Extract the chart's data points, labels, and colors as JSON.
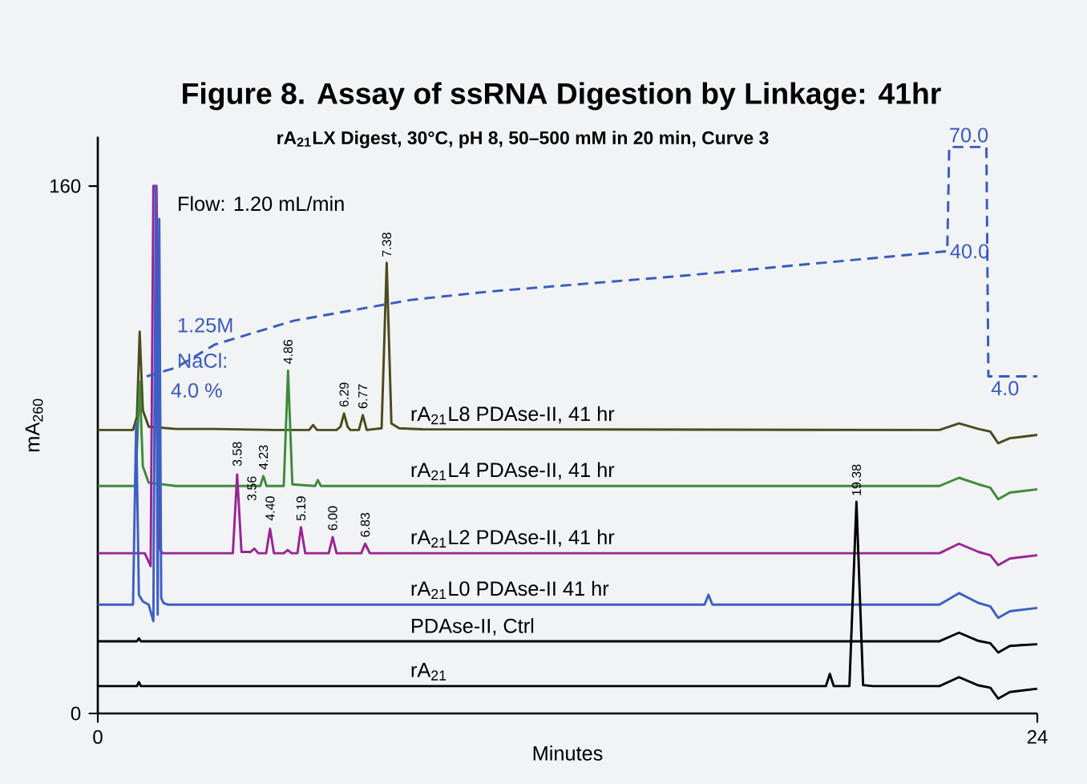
{
  "chart_data": {
    "type": "line",
    "title": "Figure 8. Assay of ssRNA Digestion by Linkage: 41hr",
    "subtitle": "rA$_{21}$LX Digest, 30°C, pH 8, 50–500 mM in 20 min, Curve 3",
    "xlabel": "Minutes",
    "ylabel": "mA$_{260}$",
    "xlim": [
      0,
      24
    ],
    "xticks": [
      0,
      24
    ],
    "ylim": [
      0,
      175
    ],
    "yticks": [
      0,
      160
    ],
    "y2lim": [
      -93,
      73
    ],
    "series": [
      {
        "name": "rA$_{21}$L8 PDAse-II, 41 hr",
        "color": "#4b4b1c",
        "x": [
          0,
          0.9,
          1.0,
          1.07,
          1.15,
          1.3,
          2,
          3,
          4.5,
          4.6,
          5.4,
          5.5,
          5.6,
          6.1,
          6.2,
          6.29,
          6.38,
          6.45,
          6.67,
          6.77,
          6.87,
          7.25,
          7.38,
          7.5,
          7.7,
          8.3,
          21.5,
          22.0,
          22.5,
          22.8,
          23.0,
          23.3,
          24
        ],
        "values": [
          86,
          86,
          90,
          115.8,
          92,
          87,
          86.3,
          86.3,
          86,
          86,
          86,
          87.5,
          86,
          86,
          87,
          91,
          87,
          86,
          86,
          90.5,
          86,
          86.5,
          136.7,
          88,
          86.5,
          86.2,
          86,
          88,
          86.3,
          85.5,
          82,
          83.5,
          84.5
        ]
      },
      {
        "name": "rA$_{21}$L4 PDAse-II, 41 hr",
        "color": "#3f8a3a",
        "x": [
          0,
          0.95,
          1.0,
          1.07,
          1.15,
          1.3,
          2,
          3.5,
          4.15,
          4.23,
          4.31,
          4.75,
          4.86,
          4.97,
          5.55,
          5.62,
          5.7,
          8,
          21.5,
          22.0,
          22.5,
          22.8,
          23.0,
          23.3,
          24
        ],
        "values": [
          69,
          69,
          80,
          100.7,
          75,
          70,
          69,
          69,
          69,
          72,
          69,
          69,
          104,
          69.5,
          69,
          70.8,
          69,
          69,
          69,
          71.5,
          69.5,
          68.5,
          65,
          67,
          68
        ]
      },
      {
        "name": "rA$_{21}$L2 PDAse-II, 41 hr",
        "color": "#9b2394",
        "x": [
          0,
          1.2,
          1.35,
          1.42,
          1.5,
          1.58,
          1.65,
          1.8,
          3.45,
          3.56,
          3.67,
          3.9,
          4.0,
          4.1,
          4.3,
          4.4,
          4.5,
          4.75,
          4.85,
          4.95,
          5.1,
          5.19,
          5.3,
          5.9,
          6.0,
          6.1,
          6.73,
          6.83,
          6.95,
          21.5,
          22.0,
          22.5,
          22.8,
          23.0,
          23.3,
          24
        ],
        "values": [
          48.6,
          48.6,
          44.7,
          160,
          160,
          50,
          48.6,
          48.6,
          48.6,
          72.5,
          49,
          49,
          50,
          48.6,
          48.6,
          56,
          48.6,
          48.6,
          49.6,
          48.6,
          48.6,
          56.5,
          48.6,
          48.6,
          53.5,
          48.6,
          48.6,
          51.5,
          48.6,
          48.6,
          51.5,
          49,
          48,
          45,
          47,
          48
        ]
      },
      {
        "name": "rA$_{21}$L0 PDAse-II 41 hr",
        "color": "#3d5fc4",
        "x": [
          0,
          0.9,
          0.98,
          1.05,
          1.15,
          1.3,
          1.42,
          1.48,
          1.53,
          1.57,
          1.62,
          1.68,
          1.8,
          2.2,
          15.5,
          15.6,
          15.7,
          21.5,
          22.0,
          22.5,
          22.8,
          23.0,
          23.3,
          24
        ],
        "values": [
          33,
          33,
          88,
          36,
          34,
          33,
          28,
          160,
          30,
          150,
          35,
          33.5,
          33,
          33,
          33,
          36,
          33,
          33,
          36.5,
          33.5,
          32.5,
          29,
          31,
          32
        ]
      },
      {
        "name": "PDAse-II, Ctrl",
        "color": "#000000",
        "x": [
          0,
          1.0,
          1.05,
          1.1,
          19.2,
          21.5,
          22.0,
          22.5,
          22.8,
          23.0,
          23.3,
          24
        ],
        "values": [
          21.9,
          21.9,
          22.8,
          21.9,
          21.9,
          21.9,
          24.5,
          22,
          21.3,
          18.5,
          20.5,
          21
        ]
      },
      {
        "name": "rA$_{21}$",
        "color": "#000000",
        "x": [
          0,
          1.0,
          1.05,
          1.1,
          18.6,
          18.7,
          18.8,
          19.2,
          19.38,
          19.55,
          19.8,
          21.5,
          22.0,
          22.5,
          22.8,
          23.0,
          23.3,
          24
        ],
        "values": [
          8.3,
          8.3,
          9.5,
          8.3,
          8.3,
          12,
          8.3,
          8.3,
          64.2,
          8.6,
          8.3,
          8.3,
          11,
          8.5,
          7.8,
          4.5,
          6.5,
          7.5
        ]
      },
      {
        "color": "#3a5bbf",
        "axis": "y2",
        "line_style": "dashed",
        "x": [
          1.25,
          2,
          3,
          5,
          8,
          10,
          15,
          21.7,
          21.75,
          22.25,
          22.7,
          22.75,
          24
        ],
        "values": [
          4,
          6.5,
          13.2,
          20,
          26,
          28.4,
          33,
          40,
          70,
          70,
          70,
          4,
          4
        ],
        "value_labels": [
          "4.0 %",
          null,
          null,
          null,
          null,
          null,
          null,
          "40.0",
          null,
          "70.0",
          null,
          "4.0",
          null
        ]
      }
    ],
    "annotations": [
      "Flow: 1.20 mL/min",
      "1.25M",
      "NaCl:",
      {
        "text": "3.56",
        "x": 3.56,
        "y": 72.5
      },
      {
        "text": "3.58",
        "x": 3.56,
        "y": 73.5
      },
      {
        "text": "4.23",
        "x": 4.23,
        "y": 72.5
      },
      {
        "text": "4.40",
        "x": 4.4,
        "y": 57
      },
      {
        "text": "4.86",
        "x": 4.86,
        "y": 104.5
      },
      {
        "text": "5.19",
        "x": 5.19,
        "y": 57
      },
      {
        "text": "6.00",
        "x": 6.0,
        "y": 54
      },
      {
        "text": "6.29",
        "x": 6.29,
        "y": 91.5
      },
      {
        "text": "6.77",
        "x": 6.77,
        "y": 91
      },
      {
        "text": "6.83",
        "x": 6.83,
        "y": 52
      },
      {
        "text": "7.38",
        "x": 7.38,
        "y": 137
      },
      {
        "text": "19.38",
        "x": 19.38,
        "y": 64.5
      }
    ]
  }
}
